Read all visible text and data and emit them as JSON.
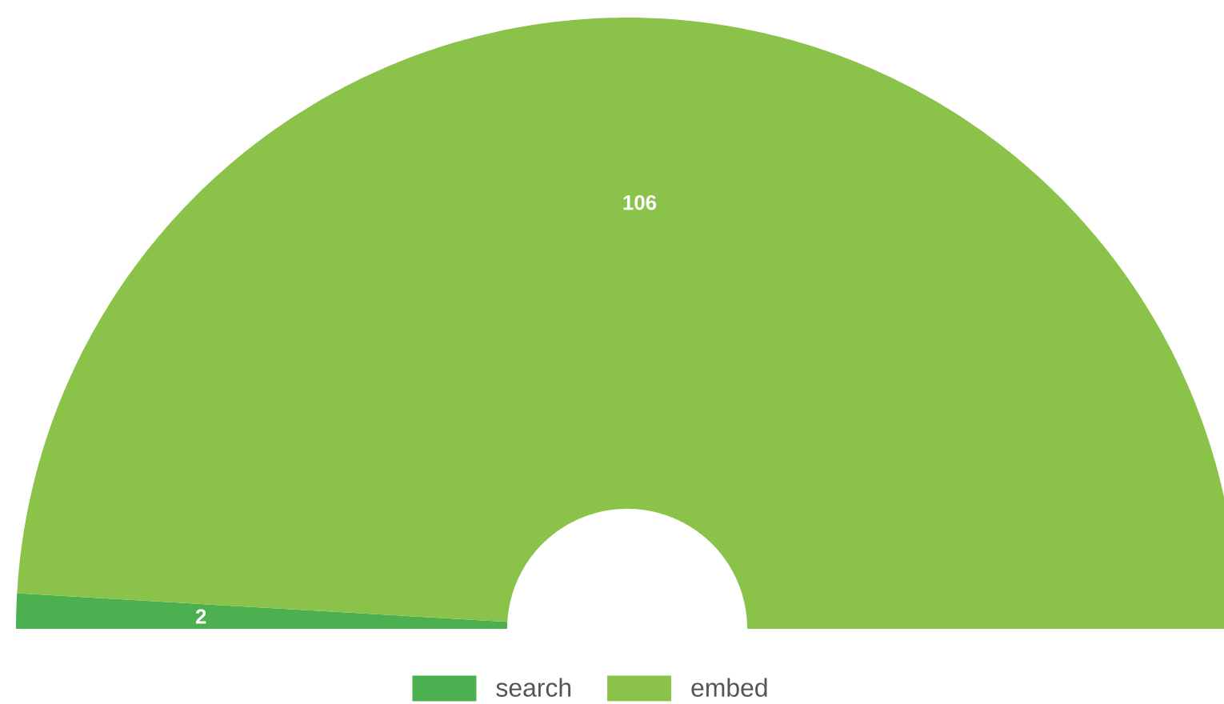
{
  "chart_data": {
    "type": "donut",
    "categories": [
      "search",
      "embed"
    ],
    "values": [
      2,
      106
    ],
    "colors": [
      "#4caf50",
      "#8bc34a"
    ],
    "data_labels": true,
    "legend": "bottom"
  }
}
